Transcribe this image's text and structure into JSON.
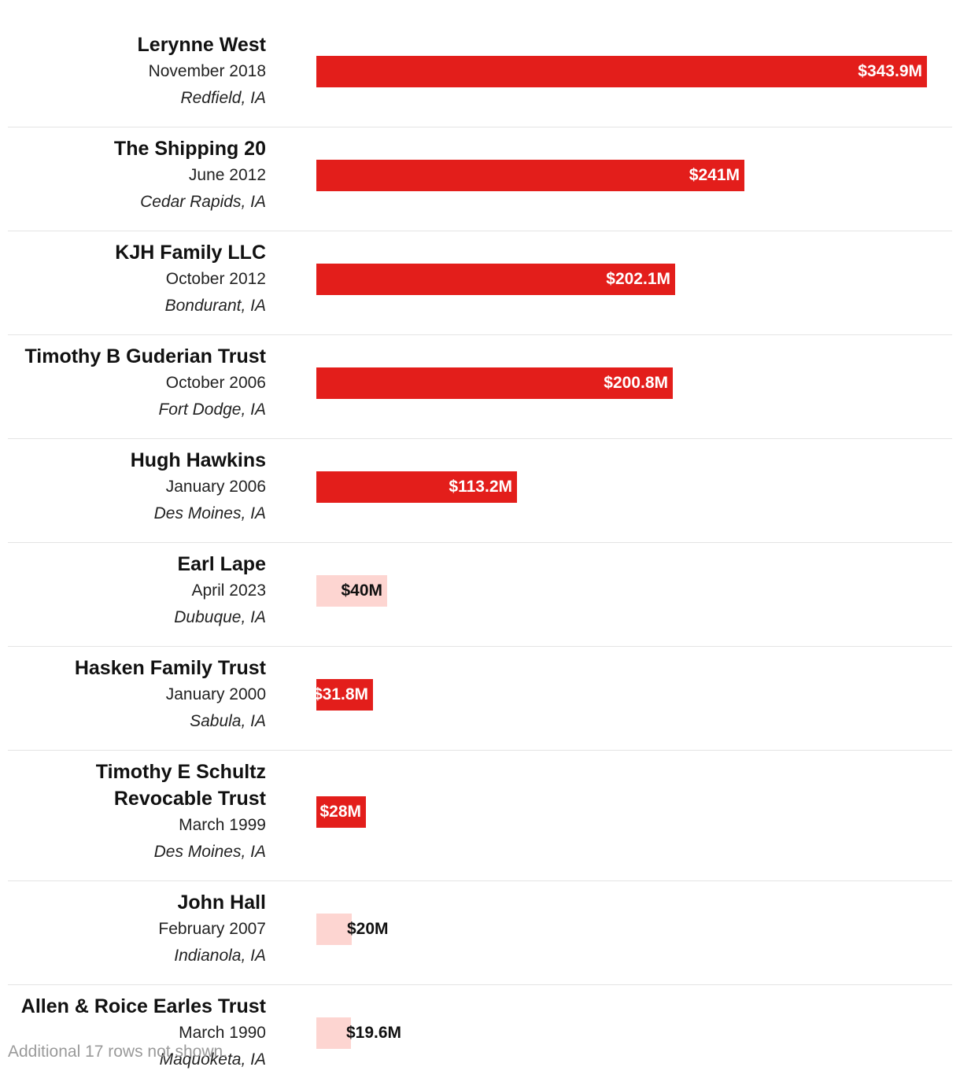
{
  "chart_data": {
    "type": "bar",
    "orientation": "horizontal",
    "categories": [
      "Lerynne West",
      "The Shipping 20",
      "KJH Family LLC",
      "Timothy B Guderian Trust",
      "Hugh Hawkins",
      "Earl Lape",
      "Hasken Family Trust",
      "Timothy E Schultz Revocable Trust",
      "John Hall",
      "Allen & Roice Earles Trust"
    ],
    "rows": [
      {
        "name_lines": [
          "Lerynne West"
        ],
        "date": "November 2018",
        "place": "Redfield, IA",
        "value": 343.9,
        "value_label": "$343.9M",
        "highlight": true
      },
      {
        "name_lines": [
          "The Shipping 20"
        ],
        "date": "June 2012",
        "place": "Cedar Rapids, IA",
        "value": 241,
        "value_label": "$241M",
        "highlight": true
      },
      {
        "name_lines": [
          "KJH Family LLC"
        ],
        "date": "October 2012",
        "place": "Bondurant, IA",
        "value": 202.1,
        "value_label": "$202.1M",
        "highlight": true
      },
      {
        "name_lines": [
          "Timothy B Guderian Trust"
        ],
        "date": "October 2006",
        "place": "Fort Dodge, IA",
        "value": 200.8,
        "value_label": "$200.8M",
        "highlight": true
      },
      {
        "name_lines": [
          "Hugh Hawkins"
        ],
        "date": "January 2006",
        "place": "Des Moines, IA",
        "value": 113.2,
        "value_label": "$113.2M",
        "highlight": true
      },
      {
        "name_lines": [
          "Earl Lape"
        ],
        "date": "April 2023",
        "place": "Dubuque, IA",
        "value": 40,
        "value_label": "$40M",
        "highlight": false
      },
      {
        "name_lines": [
          "Hasken Family Trust"
        ],
        "date": "January 2000",
        "place": "Sabula, IA",
        "value": 31.8,
        "value_label": "$31.8M",
        "highlight": true
      },
      {
        "name_lines": [
          "Timothy E Schultz",
          "Revocable Trust"
        ],
        "date": "March 1999",
        "place": "Des Moines, IA",
        "value": 28,
        "value_label": "$28M",
        "highlight": true
      },
      {
        "name_lines": [
          "John Hall"
        ],
        "date": "February 2007",
        "place": "Indianola, IA",
        "value": 20,
        "value_label": "$20M",
        "highlight": false
      },
      {
        "name_lines": [
          "Allen & Roice Earles Trust"
        ],
        "date": "March 1990",
        "place": "Maquoketa, IA",
        "value": 19.6,
        "value_label": "$19.6M",
        "highlight": false
      }
    ],
    "xlim": [
      0,
      343.9
    ],
    "grid": false,
    "colors": {
      "strong": "#e31e1b",
      "light": "#fdd5d1"
    }
  },
  "footnote": "Additional 17 rows not shown."
}
